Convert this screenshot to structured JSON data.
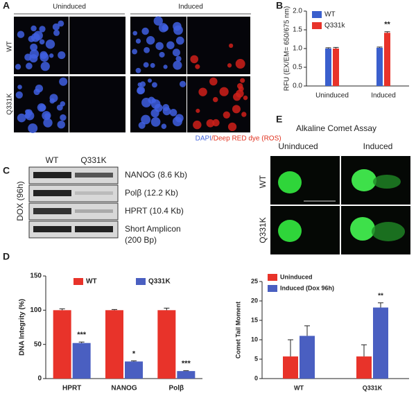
{
  "panels": {
    "a": {
      "letter": "A",
      "columns": [
        "Uninduced",
        "Induced"
      ],
      "rows": [
        "WT",
        "Q331K"
      ],
      "caption_blue": "DAPI",
      "caption_red": "/Deep RED dye (ROS)"
    },
    "b": {
      "letter": "B"
    },
    "c": {
      "letter": "C",
      "lanes": [
        "WT",
        "Q331K"
      ],
      "side_label": "DOX (96h)",
      "bands": [
        "NANOG (8.6 Kb)",
        "Polβ (12.2 Kb)",
        "HPRT (10.4 Kb)",
        "Short Amplicon",
        "(200 Bp)"
      ]
    },
    "d": {
      "letter": "D"
    },
    "e": {
      "letter": "E",
      "title": "Alkaline  Comet Assay",
      "columns": [
        "Uninduced",
        "Induced"
      ],
      "rows": [
        "WT",
        "Q331K"
      ]
    }
  },
  "chart_data": [
    {
      "type": "bar",
      "y_label": "RFU (EX/EM= 650/675 nm)",
      "categories": [
        "Uninduced",
        "Induced"
      ],
      "series": [
        {
          "name": "WT",
          "color": "#3a5fcd",
          "values": [
            1.0,
            1.02
          ],
          "errors": [
            0.02,
            0.02
          ]
        },
        {
          "name": "Q331k",
          "color": "#e8332a",
          "values": [
            1.0,
            1.42
          ],
          "errors": [
            0.03,
            0.03
          ],
          "annotations": [
            null,
            "**"
          ]
        }
      ],
      "ylim": [
        0,
        2
      ],
      "yticks": [
        {
          "value": 0,
          "label": "0.0"
        },
        {
          "value": 0.5,
          "label": "0.5"
        },
        {
          "value": 1,
          "label": "1.0"
        },
        {
          "value": 1.5,
          "label": "1.5"
        },
        {
          "value": 2,
          "label": "2.0"
        }
      ],
      "legend": "upper left"
    },
    {
      "type": "bar",
      "y_label": "DNA Integrity (%)",
      "categories": [
        "HPRT",
        "NANOG",
        "Polβ"
      ],
      "series": [
        {
          "name": "WT",
          "color": "#e8332a",
          "values": [
            100,
            100,
            100
          ],
          "errors": [
            2,
            1,
            3
          ]
        },
        {
          "name": "Q331K",
          "color": "#4a5fc1",
          "values": [
            52,
            25,
            11
          ],
          "errors": [
            1.5,
            1,
            0.5
          ],
          "annotations": [
            "***",
            "*",
            "***"
          ]
        }
      ],
      "ylim": [
        0,
        150
      ],
      "yticks": [
        0,
        50,
        100,
        150
      ],
      "legend": "top"
    },
    {
      "type": "bar",
      "y_label": "Comet Tail Moment",
      "categories": [
        "WT",
        "Q331K"
      ],
      "series": [
        {
          "name": "Uninduced",
          "color": "#e8332a",
          "values": [
            5.7,
            5.7
          ],
          "errors": [
            4.3,
            3
          ]
        },
        {
          "name": "Induced (Dox 96h)",
          "color": "#4a5fc1",
          "values": [
            11,
            18.3
          ],
          "errors": [
            2.6,
            1.2
          ],
          "annotations": [
            null,
            "**"
          ]
        }
      ],
      "ylim": [
        0,
        25
      ],
      "yticks": [
        0,
        5,
        10,
        15,
        20,
        25
      ],
      "legend": "upper left"
    }
  ]
}
